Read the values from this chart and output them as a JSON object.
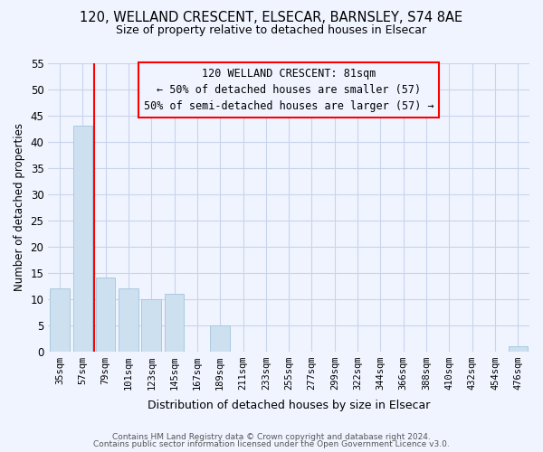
{
  "title1": "120, WELLAND CRESCENT, ELSECAR, BARNSLEY, S74 8AE",
  "title2": "Size of property relative to detached houses in Elsecar",
  "xlabel": "Distribution of detached houses by size in Elsecar",
  "ylabel": "Number of detached properties",
  "bar_labels": [
    "35sqm",
    "57sqm",
    "79sqm",
    "101sqm",
    "123sqm",
    "145sqm",
    "167sqm",
    "189sqm",
    "211sqm",
    "233sqm",
    "255sqm",
    "277sqm",
    "299sqm",
    "322sqm",
    "344sqm",
    "366sqm",
    "388sqm",
    "410sqm",
    "432sqm",
    "454sqm",
    "476sqm"
  ],
  "bar_values": [
    12,
    43,
    14,
    12,
    10,
    11,
    0,
    5,
    0,
    0,
    0,
    0,
    0,
    0,
    0,
    0,
    0,
    0,
    0,
    0,
    1
  ],
  "bar_color": "#cde0f0",
  "bar_edge_color": "#aac8e0",
  "reference_line_index": 1.5,
  "ylim": [
    0,
    55
  ],
  "yticks": [
    0,
    5,
    10,
    15,
    20,
    25,
    30,
    35,
    40,
    45,
    50,
    55
  ],
  "annotation_title": "120 WELLAND CRESCENT: 81sqm",
  "annotation_line1": "← 50% of detached houses are smaller (57)",
  "annotation_line2": "50% of semi-detached houses are larger (57) →",
  "footnote1": "Contains HM Land Registry data © Crown copyright and database right 2024.",
  "footnote2": "Contains public sector information licensed under the Open Government Licence v3.0.",
  "bg_color": "#f0f4ff",
  "grid_color": "#c8d4ec"
}
